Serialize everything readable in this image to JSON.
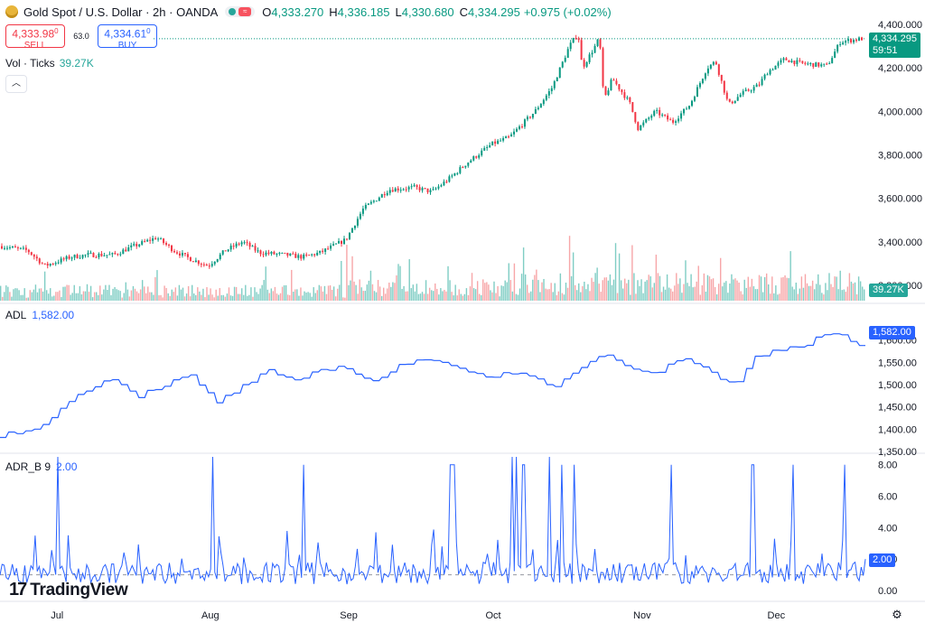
{
  "header": {
    "symbol": "Gold Spot / U.S. Dollar · 2h · OANDA",
    "o_label": "O",
    "o": "4,333.270",
    "h_label": "H",
    "h": "4,336.185",
    "l_label": "L",
    "l": "4,330.680",
    "c_label": "C",
    "c": "4,334.295",
    "change": "+0.975 (+0.02%)",
    "status_icon": "market-open-dot",
    "wave_icon": "sine-wave-icon"
  },
  "trade": {
    "sell_price": "4,333.98",
    "sell_sup": "0",
    "sell_label": "SELL",
    "spread": "63.0",
    "buy_price": "4,334.61",
    "buy_sup": "0",
    "buy_label": "BUY"
  },
  "volume": {
    "label": "Vol · Ticks",
    "value": "39.27K",
    "badge": "39.27K"
  },
  "price_badge": {
    "price": "4,334.295",
    "countdown": "59:51"
  },
  "adl": {
    "label": "ADL",
    "value": "1,582.00",
    "badge": "1,582.00"
  },
  "adr": {
    "label": "ADR_B 9",
    "value": "2.00",
    "badge": "2.00"
  },
  "brand": {
    "name": "TradingView",
    "mark": "17"
  },
  "settings_icon": "gear-icon",
  "colors": {
    "up": "#089981",
    "down": "#f23645",
    "line": "#2962ff",
    "vol_up": "#7fcdc4",
    "vol_down": "#f7a6a8",
    "last_price": "#089981"
  },
  "chart_data": [
    {
      "type": "candlestick",
      "title": "Gold Spot / U.S. Dollar · 2h · OANDA",
      "x_ticks": [
        "Jul",
        "Aug",
        "Sep",
        "Oct",
        "Nov",
        "Dec"
      ],
      "y_ticks": [
        "4,400.000",
        "4,200.000",
        "4,000.000",
        "3,800.000",
        "3,600.000",
        "3,400.000",
        "3,200.000"
      ],
      "ylim": [
        3200,
        4400
      ],
      "trend": [
        {
          "t": 0.0,
          "v": 3380
        },
        {
          "t": 0.03,
          "v": 3360
        },
        {
          "t": 0.05,
          "v": 3290
        },
        {
          "t": 0.08,
          "v": 3330
        },
        {
          "t": 0.1,
          "v": 3340
        },
        {
          "t": 0.13,
          "v": 3340
        },
        {
          "t": 0.15,
          "v": 3375
        },
        {
          "t": 0.18,
          "v": 3420
        },
        {
          "t": 0.2,
          "v": 3360
        },
        {
          "t": 0.22,
          "v": 3320
        },
        {
          "t": 0.24,
          "v": 3290
        },
        {
          "t": 0.26,
          "v": 3360
        },
        {
          "t": 0.28,
          "v": 3400
        },
        {
          "t": 0.3,
          "v": 3350
        },
        {
          "t": 0.33,
          "v": 3340
        },
        {
          "t": 0.35,
          "v": 3330
        },
        {
          "t": 0.37,
          "v": 3350
        },
        {
          "t": 0.39,
          "v": 3390
        },
        {
          "t": 0.4,
          "v": 3410
        },
        {
          "t": 0.42,
          "v": 3550
        },
        {
          "t": 0.45,
          "v": 3640
        },
        {
          "t": 0.48,
          "v": 3650
        },
        {
          "t": 0.5,
          "v": 3630
        },
        {
          "t": 0.52,
          "v": 3690
        },
        {
          "t": 0.54,
          "v": 3760
        },
        {
          "t": 0.57,
          "v": 3850
        },
        {
          "t": 0.59,
          "v": 3880
        },
        {
          "t": 0.62,
          "v": 4000
        },
        {
          "t": 0.64,
          "v": 4110
        },
        {
          "t": 0.66,
          "v": 4300
        },
        {
          "t": 0.67,
          "v": 4360
        },
        {
          "t": 0.675,
          "v": 4200
        },
        {
          "t": 0.69,
          "v": 4300
        },
        {
          "t": 0.695,
          "v": 4340
        },
        {
          "t": 0.7,
          "v": 4050
        },
        {
          "t": 0.71,
          "v": 4150
        },
        {
          "t": 0.73,
          "v": 4040
        },
        {
          "t": 0.74,
          "v": 3920
        },
        {
          "t": 0.76,
          "v": 4000
        },
        {
          "t": 0.78,
          "v": 3950
        },
        {
          "t": 0.8,
          "v": 4030
        },
        {
          "t": 0.82,
          "v": 4200
        },
        {
          "t": 0.83,
          "v": 4230
        },
        {
          "t": 0.845,
          "v": 4030
        },
        {
          "t": 0.86,
          "v": 4080
        },
        {
          "t": 0.88,
          "v": 4120
        },
        {
          "t": 0.89,
          "v": 4180
        },
        {
          "t": 0.91,
          "v": 4240
        },
        {
          "t": 0.93,
          "v": 4220
        },
        {
          "t": 0.96,
          "v": 4210
        },
        {
          "t": 0.975,
          "v": 4320
        },
        {
          "t": 1.0,
          "v": 4334
        }
      ]
    },
    {
      "type": "bar",
      "title": "Vol · Ticks",
      "y_ticks": []
    },
    {
      "type": "line",
      "title": "ADL",
      "y_ticks": [
        "1,600.00",
        "1,550.00",
        "1,500.00",
        "1,450.00",
        "1,400.00",
        "1,350.00"
      ],
      "ylim": [
        1350,
        1650
      ],
      "trend": [
        {
          "t": 0.0,
          "v": 1385
        },
        {
          "t": 0.04,
          "v": 1400
        },
        {
          "t": 0.07,
          "v": 1445
        },
        {
          "t": 0.1,
          "v": 1490
        },
        {
          "t": 0.13,
          "v": 1515
        },
        {
          "t": 0.16,
          "v": 1475
        },
        {
          "t": 0.19,
          "v": 1500
        },
        {
          "t": 0.22,
          "v": 1520
        },
        {
          "t": 0.25,
          "v": 1460
        },
        {
          "t": 0.28,
          "v": 1495
        },
        {
          "t": 0.31,
          "v": 1530
        },
        {
          "t": 0.34,
          "v": 1505
        },
        {
          "t": 0.37,
          "v": 1535
        },
        {
          "t": 0.4,
          "v": 1540
        },
        {
          "t": 0.43,
          "v": 1505
        },
        {
          "t": 0.46,
          "v": 1540
        },
        {
          "t": 0.5,
          "v": 1560
        },
        {
          "t": 0.53,
          "v": 1540
        },
        {
          "t": 0.56,
          "v": 1515
        },
        {
          "t": 0.59,
          "v": 1530
        },
        {
          "t": 0.62,
          "v": 1510
        },
        {
          "t": 0.64,
          "v": 1490
        },
        {
          "t": 0.67,
          "v": 1540
        },
        {
          "t": 0.7,
          "v": 1570
        },
        {
          "t": 0.73,
          "v": 1540
        },
        {
          "t": 0.76,
          "v": 1525
        },
        {
          "t": 0.79,
          "v": 1565
        },
        {
          "t": 0.82,
          "v": 1530
        },
        {
          "t": 0.85,
          "v": 1495
        },
        {
          "t": 0.87,
          "v": 1560
        },
        {
          "t": 0.9,
          "v": 1580
        },
        {
          "t": 0.93,
          "v": 1590
        },
        {
          "t": 0.96,
          "v": 1620
        },
        {
          "t": 1.0,
          "v": 1582
        }
      ]
    },
    {
      "type": "line",
      "title": "ADR_B 9",
      "y_ticks": [
        "8.00",
        "6.00",
        "4.00",
        "2.00",
        "0.00"
      ],
      "ylim": [
        0,
        8.5
      ],
      "spikes": [
        {
          "t": 0.066,
          "v": 8.5
        },
        {
          "t": 0.246,
          "v": 8.5
        },
        {
          "t": 0.35,
          "v": 8.0
        },
        {
          "t": 0.52,
          "v": 8.0
        },
        {
          "t": 0.524,
          "v": 8.0
        },
        {
          "t": 0.592,
          "v": 8.5
        },
        {
          "t": 0.596,
          "v": 8.5
        },
        {
          "t": 0.605,
          "v": 8.0
        },
        {
          "t": 0.635,
          "v": 8.5
        },
        {
          "t": 0.65,
          "v": 8.0
        },
        {
          "t": 0.664,
          "v": 8.0
        },
        {
          "t": 0.775,
          "v": 8.0
        },
        {
          "t": 0.87,
          "v": 8.0
        },
        {
          "t": 0.917,
          "v": 8.0
        },
        {
          "t": 0.976,
          "v": 8.0
        }
      ]
    }
  ]
}
